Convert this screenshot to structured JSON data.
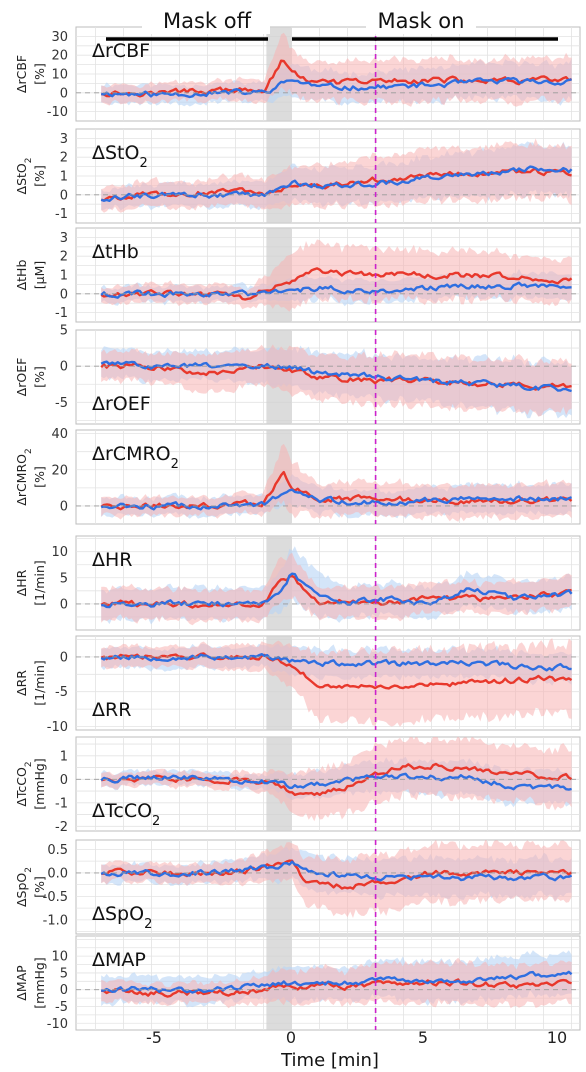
{
  "colors": {
    "red": "#e8382c",
    "red_band": "#f7b3b3",
    "blue": "#2f6fe0",
    "blue_band": "#b8d4f5",
    "mask_on_marker": "#cc22cc",
    "transition_shade": "#d0d0d0"
  },
  "chart_data": {
    "type": "line",
    "phases": [
      {
        "label": "Mask off",
        "x_range": [
          -6.8,
          -0.9
        ]
      },
      {
        "label": "Mask on",
        "x_range": [
          0,
          10
        ]
      }
    ],
    "shaded_interval": [
      -0.9,
      0
    ],
    "marker_x": 3,
    "xlim": [
      -7.7,
      10.3
    ],
    "x_ticks": [
      -5,
      0,
      5,
      10
    ],
    "x_tick_labels": [
      "-5",
      "0",
      "5",
      "10"
    ],
    "xlabel": "Time [min]",
    "panels": [
      {
        "title": "ΔrCBF",
        "title_sub": "",
        "ylabel_main": "ΔrCBF",
        "ylabel_sub": "",
        "ylabel_unit": "[%]",
        "ylim": [
          -15,
          35
        ],
        "yticks": [
          -10,
          0,
          10,
          20,
          30
        ],
        "ytick_labels": [
          "-10",
          "0",
          "10",
          "20",
          "30"
        ],
        "title_pos": "upper-left",
        "red": {
          "t": [
            -6.8,
            -5,
            -3,
            -1,
            -0.3,
            0,
            1,
            3,
            5,
            7,
            10
          ],
          "y": [
            0,
            0,
            1,
            1,
            18,
            10,
            5,
            6,
            7,
            6,
            7
          ],
          "band": [
            5,
            5,
            5,
            6,
            14,
            12,
            10,
            11,
            11,
            11,
            12
          ]
        },
        "blue": {
          "t": [
            -6.8,
            -5,
            -3,
            -1,
            0,
            1,
            3,
            5,
            7,
            10
          ],
          "y": [
            0,
            -1,
            0,
            0,
            7,
            3,
            3,
            4,
            6,
            6
          ],
          "band": [
            5,
            5,
            5,
            5,
            9,
            8,
            8,
            9,
            9,
            10
          ]
        }
      },
      {
        "title": "ΔStO",
        "title_sub": "2",
        "ylabel_main": "ΔStO",
        "ylabel_sub": "2",
        "ylabel_unit": "[%]",
        "ylim": [
          -1.5,
          3.5
        ],
        "yticks": [
          -1,
          0,
          1,
          2,
          3
        ],
        "ytick_labels": [
          "-1",
          "0",
          "1",
          "2",
          "3"
        ],
        "title_pos": "upper-left",
        "red": {
          "t": [
            -6.8,
            -5,
            -3,
            -1.5,
            -1,
            0,
            1,
            3,
            5,
            7,
            9,
            10
          ],
          "y": [
            -0.2,
            0,
            0.1,
            0.2,
            0,
            0.5,
            0.5,
            0.8,
            1.0,
            1.2,
            1.2,
            1.1
          ],
          "band": [
            0.6,
            0.7,
            0.7,
            0.8,
            0.8,
            1.0,
            1.1,
            1.3,
            1.4,
            1.4,
            1.4,
            1.4
          ]
        },
        "blue": {
          "t": [
            -6.8,
            -5,
            -3,
            -1,
            0,
            1,
            3,
            5,
            7,
            9,
            10
          ],
          "y": [
            -0.2,
            0,
            0,
            0,
            0.6,
            0.5,
            0.6,
            0.9,
            1.1,
            1.4,
            1.3
          ],
          "band": [
            0.5,
            0.6,
            0.6,
            0.7,
            0.9,
            0.9,
            1.0,
            1.1,
            1.2,
            1.3,
            1.3
          ]
        }
      },
      {
        "title": "ΔtHb",
        "title_sub": "",
        "ylabel_main": "ΔtHb",
        "ylabel_sub": "",
        "ylabel_unit": "[µM]",
        "ylim": [
          -1.5,
          3.5
        ],
        "yticks": [
          -1,
          0,
          1,
          2,
          3
        ],
        "ytick_labels": [
          "-1",
          "0",
          "1",
          "2",
          "3"
        ],
        "title_pos": "upper-left",
        "red": {
          "t": [
            -6.8,
            -5,
            -3,
            -1.5,
            -1,
            0,
            0.5,
            2,
            4,
            6,
            8,
            10
          ],
          "y": [
            0,
            0,
            0,
            -0.3,
            0.3,
            0.7,
            1.2,
            1.1,
            1.0,
            1.0,
            0.9,
            0.7
          ],
          "band": [
            0.4,
            0.5,
            0.5,
            0.5,
            0.7,
            1.4,
            1.5,
            1.4,
            1.3,
            1.3,
            1.2,
            1.1
          ]
        },
        "blue": {
          "t": [
            -6.8,
            -5,
            -3,
            -1,
            0,
            1,
            3,
            5,
            7,
            10
          ],
          "y": [
            0,
            0,
            0,
            0,
            0.2,
            0.3,
            0.2,
            0.3,
            0.4,
            0.5
          ],
          "band": [
            0.4,
            0.4,
            0.4,
            0.4,
            0.6,
            0.6,
            0.6,
            0.6,
            0.6,
            0.7
          ]
        }
      },
      {
        "title": "ΔrOEF",
        "title_sub": "",
        "ylabel_main": "ΔrOEF",
        "ylabel_sub": "",
        "ylabel_unit": "[%]",
        "ylim": [
          -8,
          5
        ],
        "yticks": [
          -5,
          0,
          5
        ],
        "ytick_labels": [
          "-5",
          "0",
          "5"
        ],
        "title_pos": "lower-left",
        "red": {
          "t": [
            -6.8,
            -5,
            -3,
            -1,
            0,
            1,
            3,
            5,
            7,
            9,
            10
          ],
          "y": [
            0,
            0,
            -1,
            0,
            -0.5,
            -1.5,
            -2,
            -2,
            -2.5,
            -2.8,
            -2.8
          ],
          "band": [
            2,
            2,
            2.5,
            2.5,
            3,
            3,
            3.5,
            3.5,
            3.5,
            3.5,
            3.5
          ]
        },
        "blue": {
          "t": [
            -6.8,
            -5,
            -3,
            -1,
            0,
            1,
            3,
            5,
            7,
            9,
            10
          ],
          "y": [
            0.5,
            0,
            0,
            0,
            0,
            -1,
            -1.5,
            -2,
            -2.5,
            -3,
            -3.5
          ],
          "band": [
            2,
            2,
            2,
            2.5,
            2.5,
            3,
            3,
            3,
            3.5,
            3.5,
            3.5
          ]
        }
      },
      {
        "title": "ΔrCMRO",
        "title_sub": "2",
        "ylabel_main": "ΔrCMRO",
        "ylabel_sub": "2",
        "ylabel_unit": "[%]",
        "ylim": [
          -10,
          42
        ],
        "yticks": [
          0,
          20,
          40
        ],
        "ytick_labels": [
          "0",
          "20",
          "40"
        ],
        "title_pos": "upper-left",
        "red": {
          "t": [
            -6.8,
            -5,
            -3,
            -1,
            -0.3,
            0,
            1,
            3,
            5,
            7,
            10
          ],
          "y": [
            0,
            0,
            0,
            2,
            18,
            10,
            4,
            4,
            3,
            3,
            3
          ],
          "band": [
            5,
            5,
            5,
            6,
            16,
            14,
            9,
            9,
            9,
            9,
            9
          ]
        },
        "blue": {
          "t": [
            -6.8,
            -5,
            -3,
            -1,
            0,
            1,
            3,
            5,
            7,
            10
          ],
          "y": [
            0,
            0,
            0,
            1,
            8,
            3,
            2,
            3,
            4,
            4
          ],
          "band": [
            5,
            5,
            5,
            5,
            8,
            7,
            7,
            7,
            8,
            8
          ]
        }
      },
      {
        "title": "ΔHR",
        "title_sub": "",
        "ylabel_main": "ΔHR",
        "ylabel_sub": "",
        "ylabel_unit": "[1/min]",
        "ylim": [
          -5,
          13
        ],
        "yticks": [
          0,
          5,
          10
        ],
        "ytick_labels": [
          "0",
          "5",
          "10"
        ],
        "title_pos": "upper-left",
        "red": {
          "t": [
            -6.8,
            -5,
            -3,
            -1,
            -0.5,
            0,
            1,
            2,
            3,
            5,
            7,
            10
          ],
          "y": [
            0,
            0,
            0,
            0,
            4,
            5,
            0,
            1,
            0,
            1,
            1,
            2
          ],
          "band": [
            3,
            3,
            3,
            3,
            4,
            4,
            3,
            3,
            3,
            3,
            3,
            3
          ]
        },
        "blue": {
          "t": [
            -6.8,
            -5,
            -3,
            -1,
            -0.3,
            0,
            1,
            2,
            3,
            5,
            6.5,
            8,
            10
          ],
          "y": [
            0,
            0,
            0,
            0,
            3,
            6,
            1,
            0,
            1,
            0,
            3,
            1,
            2
          ],
          "band": [
            3,
            3,
            3,
            3,
            4,
            5,
            4,
            3,
            3,
            3,
            3,
            3,
            3
          ]
        }
      },
      {
        "title": "ΔRR",
        "title_sub": "",
        "ylabel_main": "ΔRR",
        "ylabel_sub": "",
        "ylabel_unit": "[1/min]",
        "ylim": [
          -10.5,
          3
        ],
        "yticks": [
          -10,
          -5,
          0
        ],
        "ytick_labels": [
          "-10",
          "-5",
          "0"
        ],
        "title_pos": "lower-left",
        "red": {
          "t": [
            -6.8,
            -5,
            -3,
            -1,
            0,
            1,
            2,
            3,
            5,
            7,
            9,
            10
          ],
          "y": [
            0,
            0,
            0,
            0,
            -1,
            -4.5,
            -4,
            -4.5,
            -4,
            -3.5,
            -3,
            -3.5
          ],
          "band": [
            1.5,
            1.5,
            1.5,
            2,
            3,
            5,
            5,
            5,
            5,
            5,
            5,
            5
          ]
        },
        "blue": {
          "t": [
            -6.8,
            -5,
            -3,
            -1,
            0,
            1,
            3,
            5,
            7,
            9,
            10
          ],
          "y": [
            0,
            0,
            0,
            0,
            -0.5,
            -1,
            -1,
            -1,
            -1,
            -1.5,
            -1.5
          ],
          "band": [
            1.5,
            1.5,
            1.5,
            1.5,
            2,
            2,
            2,
            2,
            2,
            2,
            2
          ]
        }
      },
      {
        "title": "ΔTcCO",
        "title_sub": "2",
        "ylabel_main": "ΔTcCO",
        "ylabel_sub": "2",
        "ylabel_unit": "[mmHg]",
        "ylim": [
          -2.2,
          1.8
        ],
        "yticks": [
          -2,
          -1,
          0,
          1
        ],
        "ytick_labels": [
          "-2",
          "-1",
          "0",
          "1"
        ],
        "title_pos": "lower-left",
        "red": {
          "t": [
            -6.8,
            -5,
            -3,
            -1,
            0,
            0.5,
            2,
            3,
            4,
            5,
            6,
            8,
            10
          ],
          "y": [
            0,
            0,
            0,
            -0.1,
            -0.5,
            -0.7,
            -0.3,
            0.2,
            0.5,
            0.6,
            0.5,
            0.2,
            0.1
          ],
          "band": [
            0.3,
            0.3,
            0.3,
            0.4,
            0.8,
            1.0,
            1.1,
            1.2,
            1.2,
            1.2,
            1.2,
            1.2,
            1.2
          ]
        },
        "blue": {
          "t": [
            -6.8,
            -5,
            -3,
            -1,
            0,
            2,
            4,
            6,
            8,
            10
          ],
          "y": [
            0,
            0.1,
            0,
            -0.1,
            -0.3,
            0,
            0.1,
            0.1,
            -0.3,
            -0.4
          ],
          "band": [
            0.3,
            0.3,
            0.3,
            0.3,
            0.5,
            0.6,
            0.7,
            0.7,
            0.7,
            0.7
          ]
        }
      },
      {
        "title": "ΔSpO",
        "title_sub": "2",
        "ylabel_main": "ΔSpO",
        "ylabel_sub": "2",
        "ylabel_unit": "[%]",
        "ylim": [
          -1.3,
          0.7
        ],
        "yticks": [
          -1.0,
          -0.5,
          0.0,
          0.5
        ],
        "ytick_labels": [
          "-1.0",
          "-0.5",
          "0.0",
          "0.5"
        ],
        "title_pos": "lower-left",
        "red": {
          "t": [
            -6.8,
            -5,
            -3,
            -1,
            0,
            0.5,
            2,
            3,
            4,
            5,
            7,
            9,
            10
          ],
          "y": [
            0,
            0,
            0,
            0.1,
            0.2,
            -0.2,
            -0.3,
            -0.2,
            -0.1,
            0,
            0,
            0,
            0
          ],
          "band": [
            0.2,
            0.2,
            0.2,
            0.3,
            0.4,
            0.5,
            0.6,
            0.6,
            0.6,
            0.6,
            0.6,
            0.6,
            0.6
          ]
        },
        "blue": {
          "t": [
            -6.8,
            -5,
            -3,
            -1,
            0,
            1,
            3,
            5,
            7,
            10
          ],
          "y": [
            0,
            0,
            0,
            0.1,
            0.2,
            0,
            -0.1,
            -0.1,
            -0.1,
            -0.1
          ],
          "band": [
            0.2,
            0.2,
            0.2,
            0.25,
            0.35,
            0.35,
            0.4,
            0.4,
            0.4,
            0.4
          ]
        }
      },
      {
        "title": "ΔMAP",
        "title_sub": "",
        "ylabel_main": "ΔMAP",
        "ylabel_sub": "",
        "ylabel_unit": "[mmHg]",
        "ylim": [
          -12,
          16
        ],
        "yticks": [
          -10,
          -5,
          0,
          5,
          10
        ],
        "ytick_labels": [
          "-10",
          "-5",
          "0",
          "5",
          "10"
        ],
        "title_pos": "upper-left",
        "red": {
          "t": [
            -6.8,
            -5,
            -3,
            -1,
            0,
            2,
            4,
            6,
            8,
            10
          ],
          "y": [
            0,
            -1,
            -1,
            0,
            1,
            1,
            2,
            2,
            1,
            2
          ],
          "band": [
            3,
            3,
            3,
            4,
            5,
            5,
            6,
            6,
            6,
            6
          ]
        },
        "blue": {
          "t": [
            -6.8,
            -5,
            -3,
            -1,
            0,
            2,
            4,
            6,
            8,
            10
          ],
          "y": [
            0,
            0,
            0,
            1,
            2,
            2,
            3,
            3,
            4,
            5
          ],
          "band": [
            4,
            4,
            4,
            4,
            5,
            5,
            6,
            6,
            6,
            6
          ]
        }
      }
    ]
  }
}
